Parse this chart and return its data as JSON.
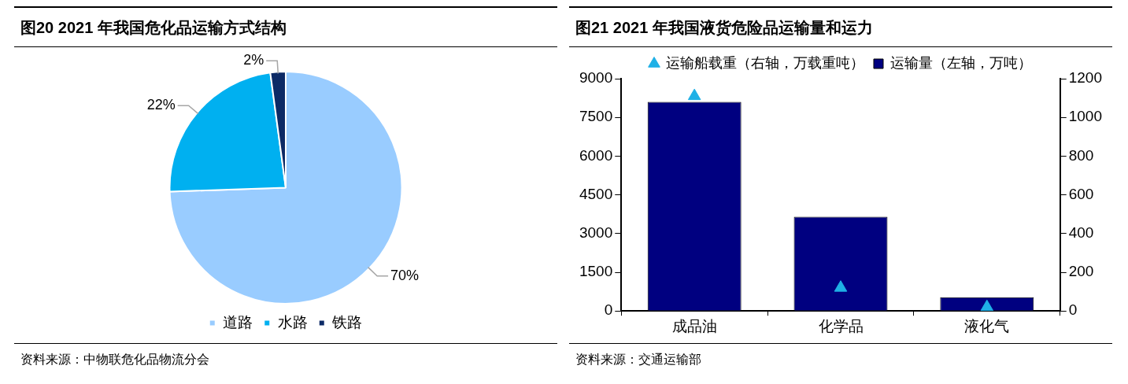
{
  "chart_data": [
    {
      "type": "pie",
      "title": "图20  2021 年我国危化品运输方式结构",
      "categories": [
        "道路",
        "水路",
        "铁路"
      ],
      "values": [
        70,
        22,
        2
      ],
      "value_labels": [
        "70%",
        "22%",
        "2%"
      ],
      "colors": [
        "#99ccff",
        "#00b0f0",
        "#0c2a66"
      ],
      "legend": "bottom",
      "annotations": [
        "资料来源：中物联危化品物流分会"
      ]
    },
    {
      "type": "bar",
      "title": "图21  2021 年我国液货危险品运输量和运力",
      "categories": [
        "成品油",
        "化学品",
        "液化气"
      ],
      "series": [
        {
          "name": "运输量（左轴，万吨）",
          "type": "bar",
          "color": "#000080",
          "values": [
            8100,
            3650,
            530
          ]
        },
        {
          "name": "运输船载重（右轴，万载重吨）",
          "type": "scatter",
          "axis": "y2",
          "marker": "triangle",
          "color": "#1fb0e6",
          "values": [
            1110,
            120,
            20
          ]
        }
      ],
      "ylim": [
        0,
        9000
      ],
      "yticks": [
        0,
        1500,
        3000,
        4500,
        6000,
        7500,
        9000
      ],
      "y2lim": [
        0,
        1200
      ],
      "y2ticks": [
        0,
        200,
        400,
        600,
        800,
        1000,
        1200
      ],
      "grid": false,
      "legend": "top",
      "annotations": [
        "资料来源：交通运输部"
      ]
    }
  ]
}
